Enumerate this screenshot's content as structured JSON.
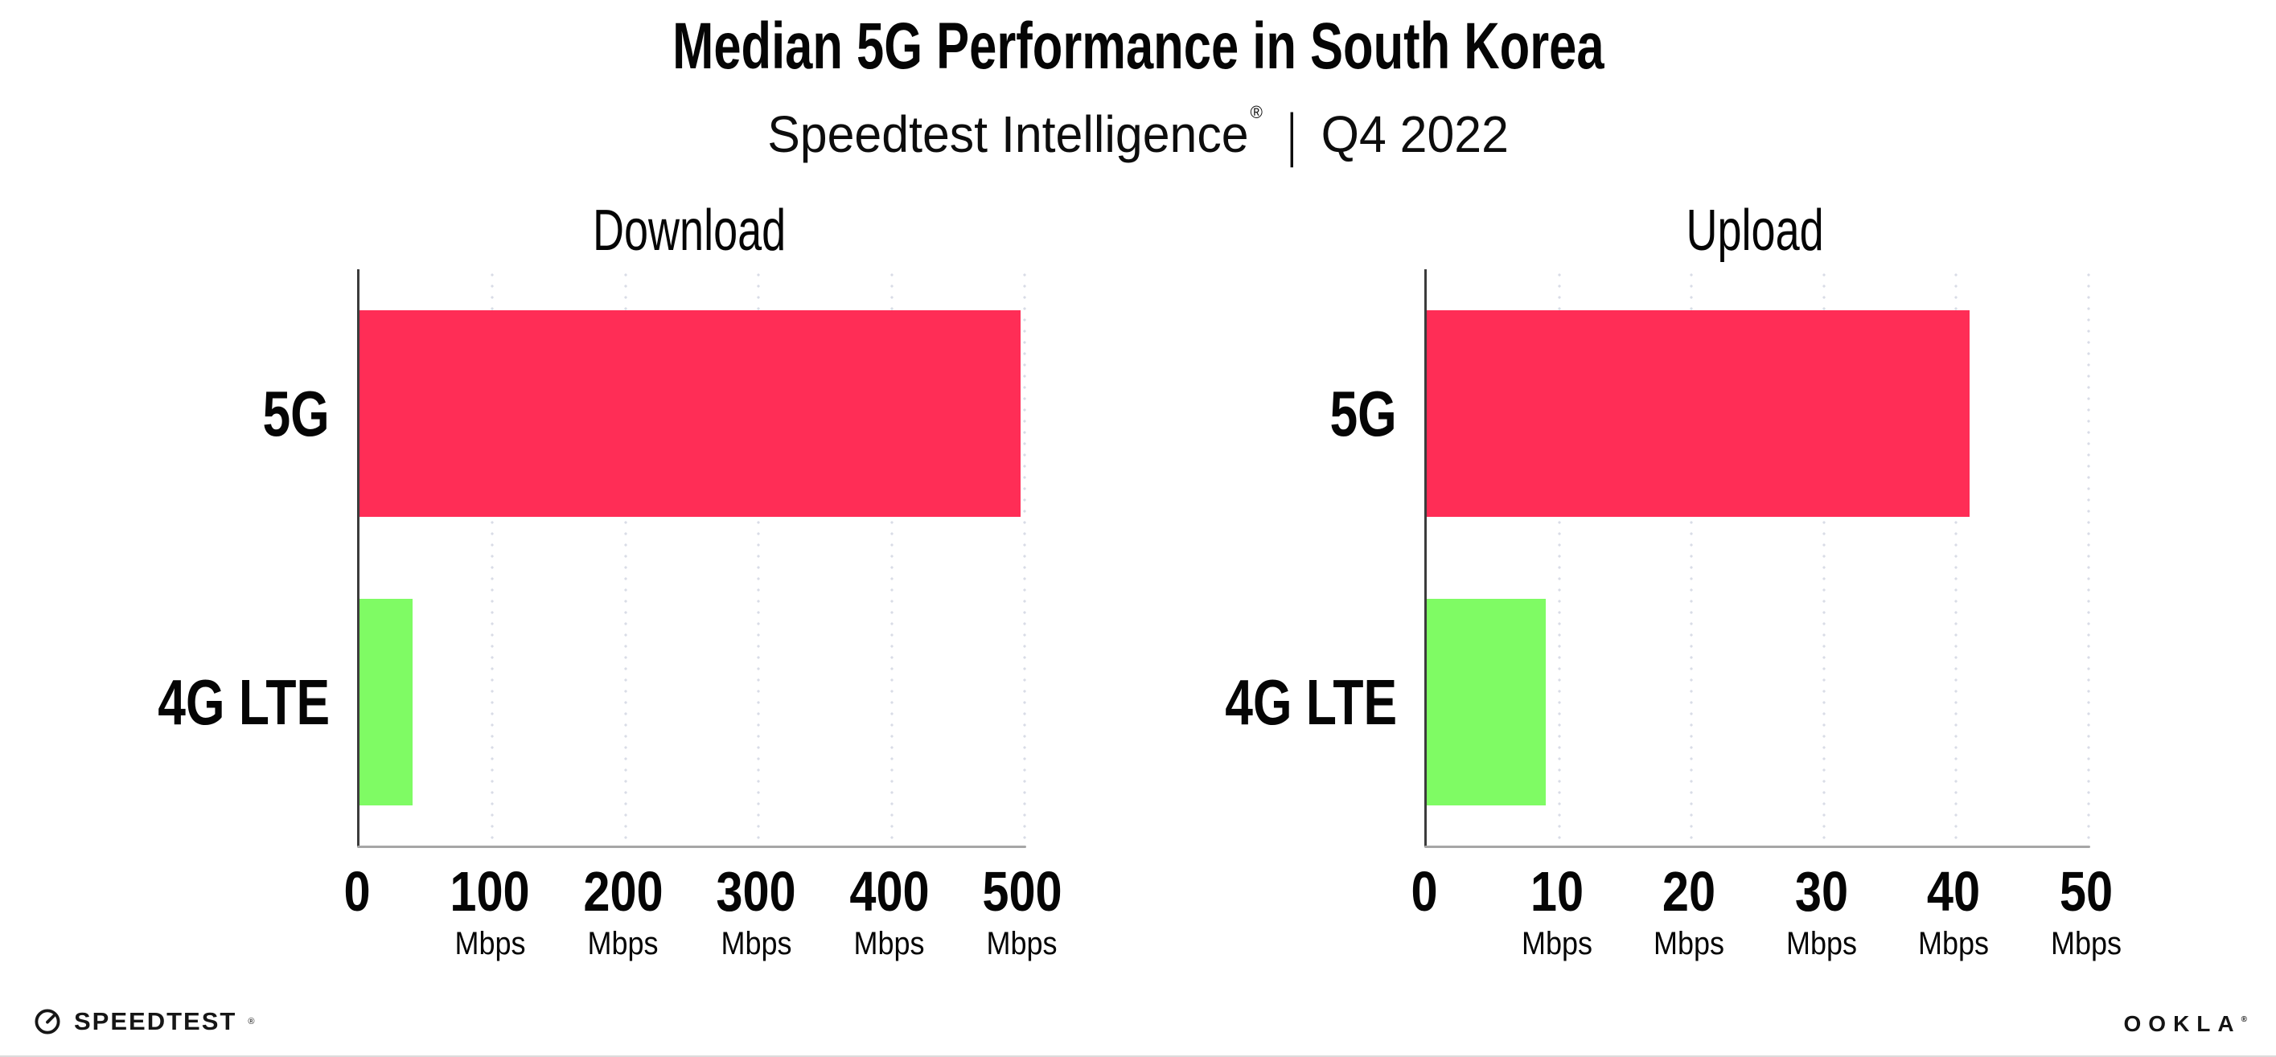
{
  "header": {
    "title": "Median 5G Performance in South Korea",
    "subtitle_brand": "Speedtest Intelligence",
    "subtitle_reg": "®",
    "subtitle_separator": "|",
    "subtitle_period": "Q4 2022"
  },
  "colors": {
    "bar_5g": "#FF2D56",
    "bar_4g_lte": "#7FFB64",
    "y_axis": "#3c3c3c",
    "x_axis": "#a6a6a6",
    "grid_dots": "#d9dce6",
    "text": "#050505"
  },
  "chart_data": [
    {
      "type": "bar",
      "orientation": "horizontal",
      "title": "Download",
      "categories": [
        "5G",
        "4G LTE"
      ],
      "values": [
        497,
        40
      ],
      "unit": "Mbps",
      "xlim": [
        0,
        500
      ],
      "xticks": [
        {
          "label": "0",
          "unit": ""
        },
        {
          "label": "100",
          "unit": "Mbps"
        },
        {
          "label": "200",
          "unit": "Mbps"
        },
        {
          "label": "300",
          "unit": "Mbps"
        },
        {
          "label": "400",
          "unit": "Mbps"
        },
        {
          "label": "500",
          "unit": "Mbps"
        }
      ],
      "bar_colors": [
        "#FF2D56",
        "#7FFB64"
      ],
      "grid": "dotted vertical gridlines at each tick",
      "legend": "none"
    },
    {
      "type": "bar",
      "orientation": "horizontal",
      "title": "Upload",
      "categories": [
        "5G",
        "4G LTE"
      ],
      "values": [
        41,
        9
      ],
      "unit": "Mbps",
      "xlim": [
        0,
        50
      ],
      "xticks": [
        {
          "label": "0",
          "unit": ""
        },
        {
          "label": "10",
          "unit": "Mbps"
        },
        {
          "label": "20",
          "unit": "Mbps"
        },
        {
          "label": "30",
          "unit": "Mbps"
        },
        {
          "label": "40",
          "unit": "Mbps"
        },
        {
          "label": "50",
          "unit": "Mbps"
        }
      ],
      "bar_colors": [
        "#FF2D56",
        "#7FFB64"
      ],
      "grid": "dotted vertical gridlines at each tick",
      "legend": "none"
    }
  ],
  "footer": {
    "speedtest_logo_text": "SPEEDTEST",
    "speedtest_reg": "®",
    "ookla_logo_text": "OOKLA",
    "ookla_reg": "®"
  }
}
